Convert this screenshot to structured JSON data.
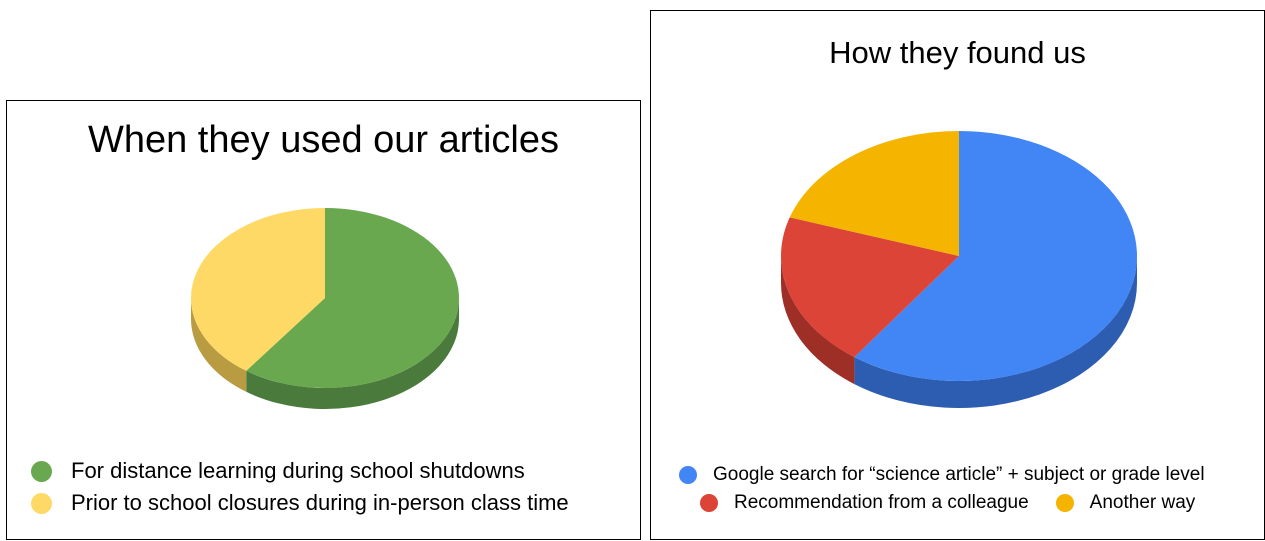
{
  "chart_data": [
    {
      "type": "pie",
      "title": "When they used our articles",
      "legend_position": "bottom",
      "style": "3d",
      "slices": [
        {
          "label": "For distance learning during school shutdowns",
          "value": 60,
          "color": "#6aa84f",
          "side_color": "#4a7a3c"
        },
        {
          "label": "Prior to school closures during in-person class time",
          "value": 40,
          "color": "#ffd966",
          "side_color": "#b99b42"
        }
      ]
    },
    {
      "type": "pie",
      "title": "How they found us",
      "legend_position": "bottom",
      "style": "3d",
      "slices": [
        {
          "label": "Google search for “science article” + subject or grade level",
          "value": 60,
          "color": "#4285f4",
          "side_color": "#2c5db0"
        },
        {
          "label": "Recommendation from a colleague",
          "value": 20,
          "color": "#db4437",
          "side_color": "#9e2f27"
        },
        {
          "label": "Another way",
          "value": 20,
          "color": "#f4b400",
          "side_color": "#b08200"
        }
      ]
    }
  ]
}
